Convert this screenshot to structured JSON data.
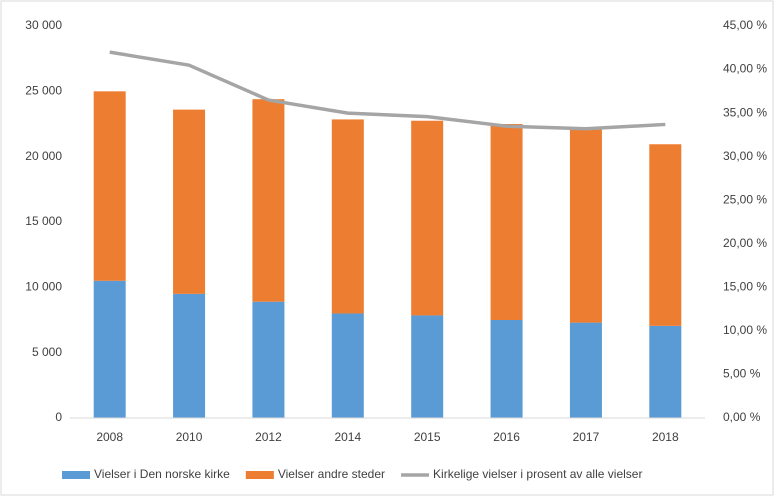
{
  "chart_data": {
    "type": "bar",
    "categories": [
      "2008",
      "2010",
      "2012",
      "2014",
      "2015",
      "2016",
      "2017",
      "2018"
    ],
    "stacked": true,
    "series": [
      {
        "name": "Vielser i Den norske kirke",
        "type": "bar",
        "color": "#5b9bd5",
        "values": [
          10500,
          9500,
          8900,
          8000,
          7850,
          7500,
          7300,
          7050
        ]
      },
      {
        "name": "Vielser andre steder",
        "type": "bar",
        "color": "#ed7d31",
        "values": [
          14500,
          14100,
          15500,
          14850,
          14900,
          15000,
          14800,
          13900
        ]
      },
      {
        "name": "Kirkelige vielser i prosent av alle vielser",
        "type": "line",
        "axis": "y2",
        "color": "#a5a5a5",
        "values": [
          42,
          40.5,
          36.5,
          35,
          34.6,
          33.5,
          33.2,
          33.7
        ]
      }
    ],
    "ylim": [
      0,
      30000
    ],
    "yticks": [
      0,
      {
        "value": 5000,
        "label": "5 000"
      },
      {
        "value": 10000,
        "label": "10 000"
      },
      {
        "value": 15000,
        "label": "15 000"
      },
      {
        "value": 20000,
        "label": "20 000"
      },
      {
        "value": 25000,
        "label": "25 000"
      },
      {
        "value": 30000,
        "label": "30 000"
      }
    ],
    "y2lim": [
      0,
      45
    ],
    "y2ticks": [
      {
        "value": 0,
        "label": "0,00 %"
      },
      {
        "value": 5,
        "label": "5,00 %"
      },
      {
        "value": 10,
        "label": "10,00 %"
      },
      {
        "value": 15,
        "label": "15,00 %"
      },
      {
        "value": 20,
        "label": "20,00 %"
      },
      {
        "value": 25,
        "label": "25,00 %"
      },
      {
        "value": 30,
        "label": "30,00 %"
      },
      {
        "value": 35,
        "label": "35,00 %"
      },
      {
        "value": 40,
        "label": "40,00 %"
      },
      {
        "value": 45,
        "label": "45,00 %"
      }
    ],
    "grid": false,
    "legend": "bottom"
  }
}
